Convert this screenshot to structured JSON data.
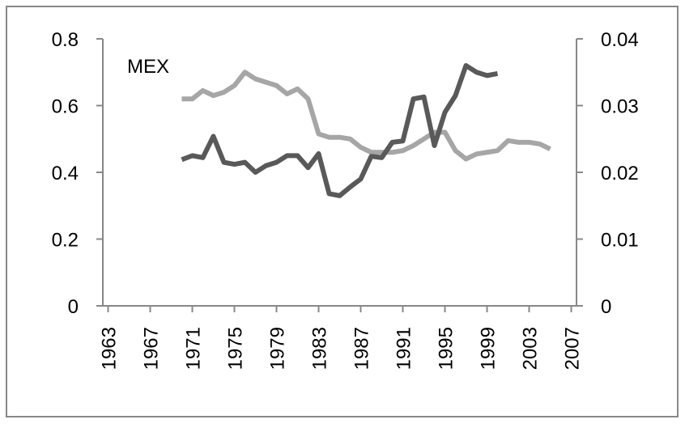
{
  "chart_data": {
    "type": "line",
    "annotation": "MEX",
    "x": [
      1970,
      1971,
      1972,
      1973,
      1974,
      1975,
      1976,
      1977,
      1978,
      1979,
      1980,
      1981,
      1982,
      1983,
      1984,
      1985,
      1986,
      1987,
      1988,
      1989,
      1990,
      1991,
      1992,
      1993,
      1994,
      1995,
      1996,
      1997,
      1998,
      1999,
      2000,
      2001,
      2002,
      2003,
      2004,
      2005
    ],
    "series": [
      {
        "color": "#a6a6a6",
        "values": [
          0.62,
          0.62,
          0.645,
          0.63,
          0.64,
          0.66,
          0.7,
          0.68,
          0.67,
          0.66,
          0.635,
          0.65,
          0.62,
          0.515,
          0.505,
          0.505,
          0.5,
          0.475,
          0.46,
          0.46,
          0.46,
          0.465,
          0.48,
          0.5,
          0.52,
          0.52,
          0.465,
          0.44,
          0.455,
          0.46,
          0.465,
          0.495,
          0.49,
          0.49,
          0.485,
          0.47
        ]
      },
      {
        "color": "#595959",
        "axis": "y2",
        "values": [
          0.0219,
          0.0225,
          0.0222,
          0.0254,
          0.0215,
          0.0212,
          0.0215,
          0.02,
          0.021,
          0.0215,
          0.0225,
          0.0225,
          0.0207,
          0.0228,
          0.0168,
          0.0165,
          0.0178,
          0.019,
          0.0224,
          0.0222,
          0.0245,
          0.0247,
          0.031,
          0.0313,
          0.024,
          0.029,
          0.0315,
          0.036,
          0.035,
          0.0345,
          0.0348,
          null,
          null,
          null,
          null,
          null
        ]
      }
    ],
    "xlim": [
      1962.5,
      2007.5
    ],
    "xticks": [
      1963,
      1967,
      1971,
      1975,
      1979,
      1983,
      1987,
      1991,
      1995,
      1999,
      2003,
      2007
    ],
    "ylim": [
      0,
      0.8
    ],
    "yticks": [
      0,
      0.2,
      0.4,
      0.6,
      0.8
    ],
    "y2lim": [
      0,
      0.04
    ],
    "y2ticks": [
      0,
      0.01,
      0.02,
      0.03,
      0.04
    ]
  }
}
